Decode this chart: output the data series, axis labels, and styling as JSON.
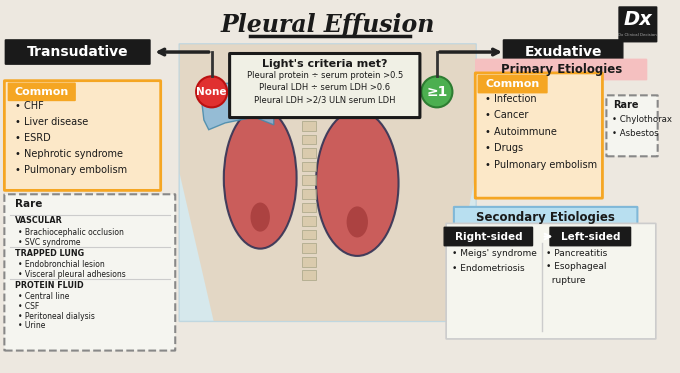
{
  "title": "Pleural Effusion",
  "bg_color": "#ede8e0",
  "transudative_label": "Transudative",
  "exudative_label": "Exudative",
  "lights_criteria_title": "Light's criteria met?",
  "lights_criteria_lines": [
    "Pleural protein ÷ serum protein >0.5",
    "Pleural LDH ÷ serum LDH >0.6",
    "Pleural LDH >2/3 ULN serum LDH"
  ],
  "none_label": "None",
  "ge1_label": "≥1",
  "common_transudative_title": "Common",
  "common_transudative_items": [
    "• CHF",
    "• Liver disease",
    "• ESRD",
    "• Nephrotic syndrome",
    "• Pulmonary embolism"
  ],
  "rare_transudative_title": "Rare",
  "rare_transudative_sections": [
    {
      "heading": "VASCULAR",
      "items": [
        "• Brachiocephalic occlusion",
        "• SVC syndrome"
      ]
    },
    {
      "heading": "TRAPPED LUNG",
      "items": [
        "• Endobronchial lesion",
        "• Visceral pleural adhesions"
      ]
    },
    {
      "heading": "PROTEIN FLUID",
      "items": [
        "• Central line",
        "• CSF",
        "• Peritoneal dialysis",
        "• Urine"
      ]
    }
  ],
  "primary_etiologies_label": "Primary Etiologies",
  "common_exudative_title": "Common",
  "common_exudative_items": [
    "• Infection",
    "• Cancer",
    "• Autoimmune",
    "• Drugs",
    "• Pulmonary embolism"
  ],
  "rare_exudative_title": "Rare",
  "rare_exudative_items": [
    "• Chylothorax",
    "• Asbestos"
  ],
  "secondary_etiologies_label": "Secondary Etiologies",
  "right_sided_label": "Right-sided",
  "left_sided_label": "Left-sided",
  "right_sided_items": [
    "• Meigs' syndrome",
    "• Endometriosis"
  ],
  "left_sided_items": [
    "• Pancreatitis",
    "• Esophageal",
    "  rupture"
  ],
  "color_black": "#1a1a1a",
  "color_orange": "#f5a623",
  "color_orange_light": "#fce8c8",
  "color_red": "#e03030",
  "color_green": "#4caf50",
  "color_pink_light": "#f5c0c0",
  "color_blue_light": "#b8dff0",
  "color_peach": "#fce8d0",
  "color_white": "#ffffff",
  "color_gray_light": "#e8e8e8",
  "arrow_color": "#333333",
  "dashed_border": "#888888"
}
